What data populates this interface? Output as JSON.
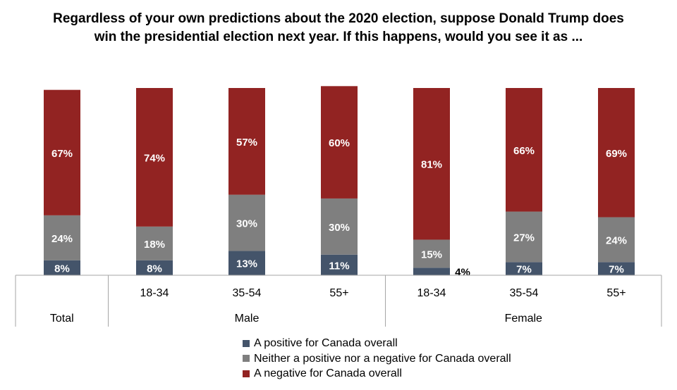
{
  "title": "Regardless of your own predictions about the 2020 election, suppose Donald Trump does win the presidential election next year. If this happens, would you see it as ...",
  "colors": {
    "positive": "#44546A",
    "neither": "#7F7F7F",
    "negative": "#922322"
  },
  "chart_data": {
    "type": "bar",
    "stacked": true,
    "title": "Regardless of your own predictions about the 2020 election, suppose Donald Trump does win the presidential election next year. If this happens, would you see it as ...",
    "ylim": [
      0,
      100
    ],
    "grid": false,
    "legend_position": "bottom",
    "categories": [
      "",
      "18-34",
      "35-54",
      "55+",
      "18-34",
      "35-54",
      "55+"
    ],
    "groups": [
      {
        "label": "Total",
        "span": 1
      },
      {
        "label": "Male",
        "span": 3
      },
      {
        "label": "Female",
        "span": 3
      }
    ],
    "series": [
      {
        "name": "A positive for Canada overall",
        "values": [
          8,
          8,
          13,
          11,
          4,
          7,
          7
        ],
        "labels": [
          "8%",
          "8%",
          "13%",
          "11%",
          "4%",
          "7%",
          "7%"
        ]
      },
      {
        "name": "Neither a positive nor a negative for Canada overall",
        "values": [
          24,
          18,
          30,
          30,
          15,
          27,
          24
        ],
        "labels": [
          "24%",
          "18%",
          "30%",
          "30%",
          "15%",
          "27%",
          "24%"
        ]
      },
      {
        "name": "A negative for Canada overall",
        "values": [
          67,
          74,
          57,
          60,
          81,
          66,
          69
        ],
        "labels": [
          "67%",
          "74%",
          "57%",
          "60%",
          "81%",
          "66%",
          "69%"
        ]
      }
    ]
  }
}
